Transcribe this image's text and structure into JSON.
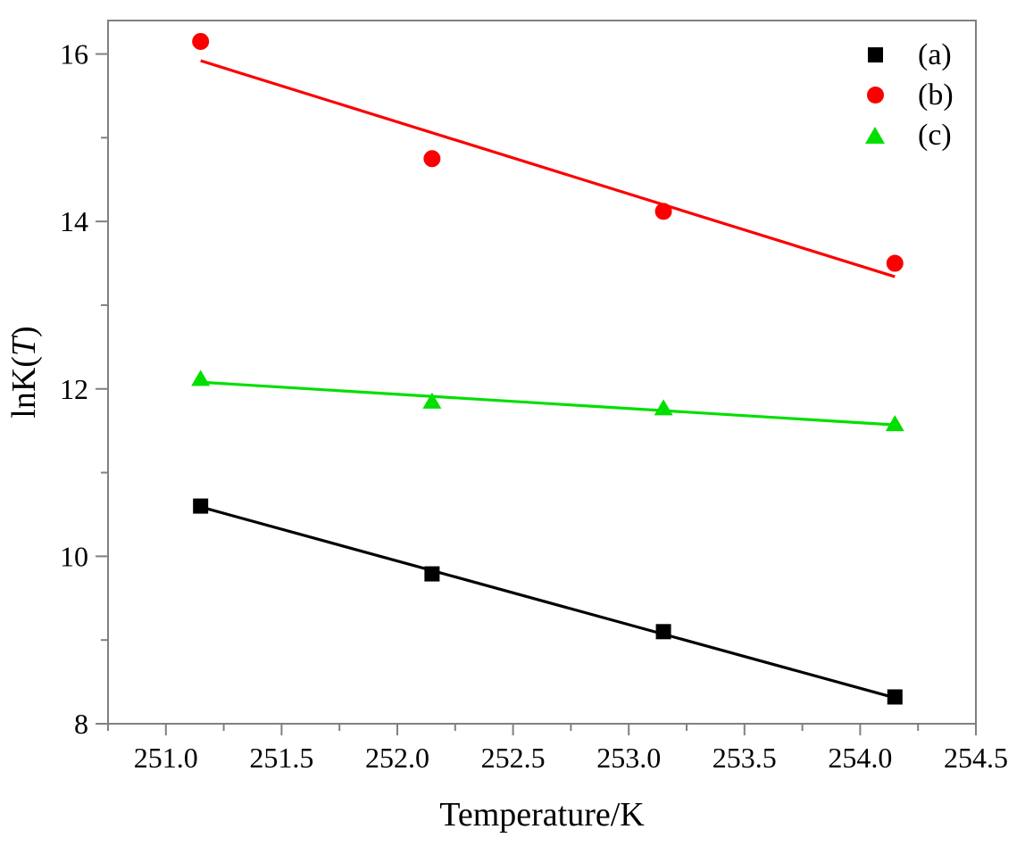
{
  "chart_data": {
    "type": "scatter",
    "title": "",
    "xlabel": "Temperature/K",
    "ylabel": "lnK(T)",
    "ylabel_parts": {
      "prefix": "lnK(",
      "variable": "T",
      "suffix": ")"
    },
    "xlim": [
      250.75,
      254.5
    ],
    "ylim": [
      8,
      16.4
    ],
    "grid": false,
    "legend_position": "top-right inside",
    "axis_color": "#808080",
    "text_color": "#000000",
    "x_major_ticks": [
      251.0,
      251.5,
      252.0,
      252.5,
      253.0,
      253.5,
      254.0,
      254.5
    ],
    "x_major_tick_labels": [
      "251.0",
      "251.5",
      "252.0",
      "252.5",
      "253.0",
      "253.5",
      "254.0",
      "254.5"
    ],
    "x_minor_ticks": [
      250.75,
      251.25,
      251.75,
      252.25,
      252.75,
      253.25,
      253.75,
      254.25
    ],
    "y_major_ticks": [
      8,
      10,
      12,
      14,
      16
    ],
    "y_major_tick_labels": [
      "8",
      "10",
      "12",
      "14",
      "16"
    ],
    "y_minor_ticks": [
      9,
      11,
      13,
      15
    ],
    "x": [
      251.15,
      252.15,
      253.15,
      254.15
    ],
    "series": [
      {
        "name": "(a)",
        "marker": "square",
        "color": "#000000",
        "values": [
          10.6,
          9.79,
          9.1,
          8.32
        ],
        "fit_line": {
          "x": [
            251.15,
            254.15
          ],
          "y": [
            10.59,
            8.31
          ]
        }
      },
      {
        "name": "(b)",
        "marker": "circle",
        "color": "#fb0000",
        "values": [
          16.15,
          14.75,
          14.12,
          13.5
        ],
        "fit_line": {
          "x": [
            251.15,
            254.15
          ],
          "y": [
            15.92,
            13.34
          ]
        }
      },
      {
        "name": "(c)",
        "marker": "triangle",
        "color": "#00df00",
        "values": [
          12.12,
          11.85,
          11.77,
          11.58
        ],
        "fit_line": {
          "x": [
            251.15,
            254.15
          ],
          "y": [
            12.08,
            11.57
          ]
        }
      }
    ]
  }
}
